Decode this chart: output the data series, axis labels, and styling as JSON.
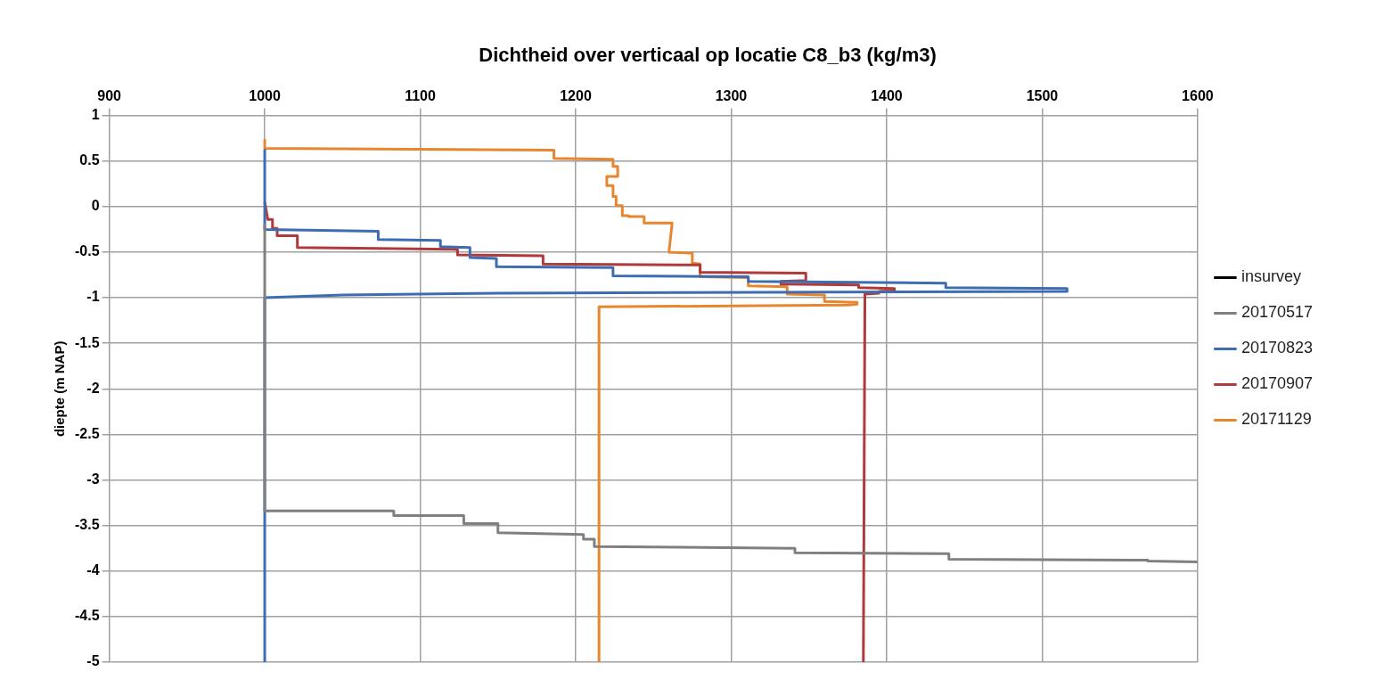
{
  "chart_data": {
    "type": "line",
    "title": "Dichtheid over verticaal op locatie C8_b3 (kg/m3)",
    "ylabel": "diepte (m NAP)",
    "xlim": [
      900,
      1600
    ],
    "xticks": [
      900,
      1000,
      1100,
      1200,
      1300,
      1400,
      1500,
      1600
    ],
    "ylim": [
      -5,
      1
    ],
    "yticks": [
      -5,
      -4.5,
      -4,
      -3.5,
      -3,
      -2.5,
      -2,
      -1.5,
      -1,
      -0.5,
      0,
      0.5,
      1
    ],
    "grid": true,
    "legend": "right",
    "marker": "none",
    "line_style": "solid",
    "series": [
      {
        "name": "insurvey",
        "color": "#000000"
      },
      {
        "name": "20170517",
        "color": "#808080",
        "x": [
          1000,
          1000,
          1083,
          1083,
          1128,
          1128,
          1150,
          1150,
          1205,
          1205,
          1212,
          1212,
          1341,
          1341,
          1440,
          1440,
          1568,
          1568,
          1600
        ],
        "values": [
          -0.2,
          -3.34,
          -3.34,
          -3.39,
          -3.39,
          -3.48,
          -3.48,
          -3.58,
          -3.6,
          -3.65,
          -3.65,
          -3.73,
          -3.75,
          -3.8,
          -3.81,
          -3.87,
          -3.88,
          -3.89,
          -3.9
        ]
      },
      {
        "name": "20170823",
        "color": "#3d6db0",
        "x": [
          1000,
          1000,
          1073,
          1073,
          1113,
          1113,
          1132,
          1132,
          1149,
          1149,
          1224,
          1224,
          1311,
          1311,
          1438,
          1438,
          1516,
          1516,
          1150,
          1050,
          1000,
          1000
        ],
        "values": [
          0.62,
          -0.25,
          -0.27,
          -0.36,
          -0.37,
          -0.44,
          -0.45,
          -0.56,
          -0.57,
          -0.66,
          -0.67,
          -0.76,
          -0.77,
          -0.82,
          -0.84,
          -0.89,
          -0.9,
          -0.93,
          -0.95,
          -0.97,
          -1.0,
          -5
        ]
      },
      {
        "name": "20170907",
        "color": "#b03a3a",
        "x": [
          1000,
          1002,
          1005,
          1005,
          1008,
          1008,
          1021,
          1021,
          1124,
          1124,
          1179,
          1179,
          1280,
          1280,
          1348,
          1348,
          1332,
          1332,
          1382,
          1382,
          1405,
          1405,
          1395,
          1395,
          1386,
          1386,
          1385
        ],
        "values": [
          0.05,
          -0.14,
          -0.14,
          -0.24,
          -0.24,
          -0.32,
          -0.32,
          -0.45,
          -0.47,
          -0.53,
          -0.54,
          -0.63,
          -0.64,
          -0.72,
          -0.73,
          -0.81,
          -0.82,
          -0.85,
          -0.86,
          -0.89,
          -0.9,
          -0.92,
          -0.93,
          -0.95,
          -0.96,
          -0.98,
          -5
        ]
      },
      {
        "name": "20171129",
        "color": "#e8862f",
        "x": [
          1000,
          1000,
          1186,
          1186,
          1224,
          1224,
          1227,
          1227,
          1220,
          1220,
          1224,
          1224,
          1226,
          1226,
          1230,
          1230,
          1234,
          1234,
          1244,
          1244,
          1262,
          1260,
          1275,
          1275,
          1280,
          1280,
          1311,
          1311,
          1336,
          1336,
          1360,
          1360,
          1381,
          1381,
          1375,
          1215,
          1215
        ],
        "values": [
          0.73,
          0.64,
          0.62,
          0.53,
          0.52,
          0.44,
          0.44,
          0.33,
          0.33,
          0.23,
          0.23,
          0.11,
          0.11,
          0.01,
          0.01,
          -0.1,
          -0.1,
          -0.11,
          -0.11,
          -0.18,
          -0.18,
          -0.5,
          -0.51,
          -0.62,
          -0.63,
          -0.77,
          -0.78,
          -0.87,
          -0.88,
          -0.96,
          -0.97,
          -1.04,
          -1.05,
          -1.07,
          -1.08,
          -1.1,
          -5
        ]
      }
    ]
  }
}
